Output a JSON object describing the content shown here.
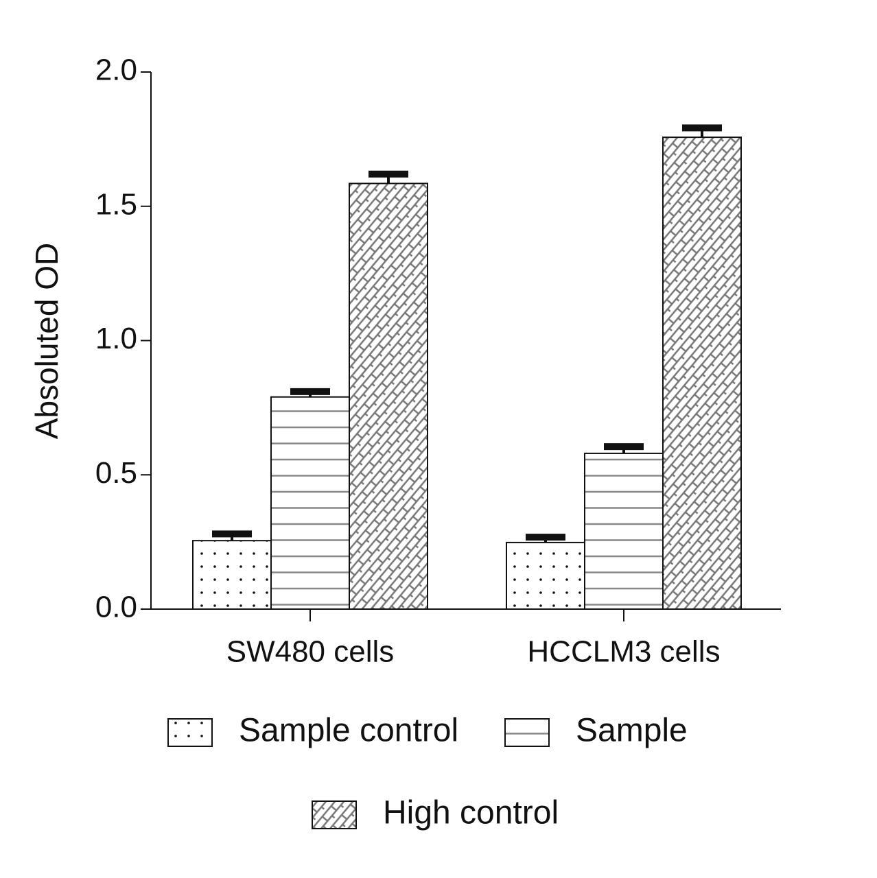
{
  "chart_data": {
    "type": "bar",
    "y_label": "Absoluted OD",
    "categories": [
      "SW480 cells",
      "HCCLM3 cells"
    ],
    "series": [
      {
        "name": "Sample control",
        "pattern": "dots",
        "color": "#111111",
        "values": [
          0.255,
          0.248
        ],
        "errors": [
          0.025,
          0.02
        ]
      },
      {
        "name": "Sample",
        "pattern": "hlines",
        "color": "#888888",
        "values": [
          0.79,
          0.58
        ],
        "errors": [
          0.02,
          0.025
        ]
      },
      {
        "name": "High control",
        "pattern": "brick",
        "color": "#777777",
        "values": [
          1.585,
          1.757
        ],
        "errors": [
          0.035,
          0.035
        ]
      }
    ],
    "ylim": [
      0,
      2.0
    ],
    "yticks": [
      {
        "value": 0,
        "label": "0.0"
      },
      {
        "value": 0.5,
        "label": "0.5"
      },
      {
        "value": 1.0,
        "label": "1.0"
      },
      {
        "value": 1.5,
        "label": "1.5"
      },
      {
        "value": 2.0,
        "label": "2.0"
      }
    ],
    "grid": false,
    "legend": "bottom"
  }
}
